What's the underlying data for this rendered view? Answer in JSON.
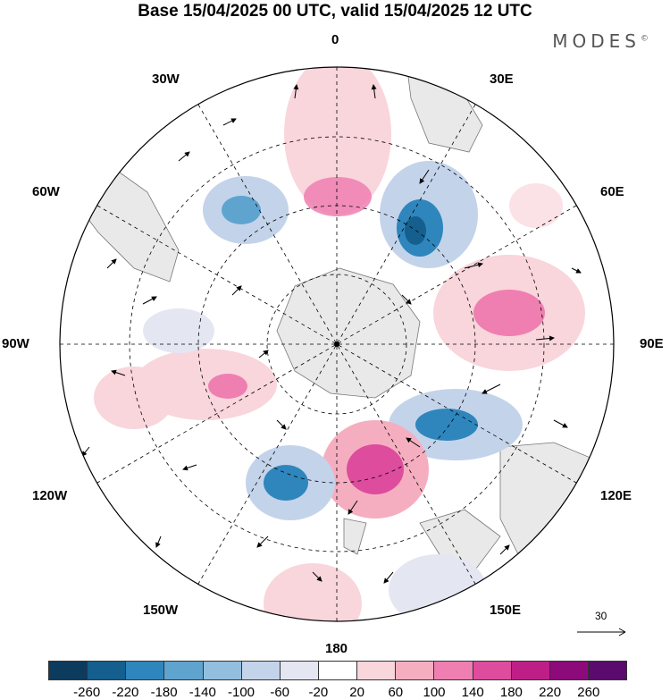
{
  "header": {
    "title": "Base 15/04/2025 00 UTC, valid 15/04/2025 12 UTC"
  },
  "logo": {
    "text": "MODES",
    "mark": "©"
  },
  "map": {
    "projection": "south-polar-stereographic",
    "longitude_labels": {
      "top": "0",
      "top_right": "30E",
      "right_upper": "60E",
      "right": "90E",
      "right_lower": "120E",
      "bottom_right": "150E",
      "bottom": "180",
      "bottom_left": "150W",
      "left_lower": "120W",
      "left": "90W",
      "left_upper": "60W",
      "top_left": "30W"
    },
    "reference_vector": {
      "value": "30"
    },
    "anomaly_centers": [
      {
        "sign": "positive",
        "level": 100,
        "location": "near 0 longitude"
      },
      {
        "sign": "negative",
        "level": -180,
        "location": "40E-60E"
      },
      {
        "sign": "positive",
        "level": 140,
        "location": "80E-90E"
      },
      {
        "sign": "negative",
        "level": -140,
        "location": "100E-110E"
      },
      {
        "sign": "positive",
        "level": 180,
        "location": "160E-180"
      },
      {
        "sign": "negative",
        "level": -180,
        "location": "140W"
      },
      {
        "sign": "positive",
        "level": 100,
        "location": "100W"
      },
      {
        "sign": "negative",
        "level": -140,
        "location": "40W"
      }
    ]
  },
  "colorbar": {
    "colors": [
      "#0d3b5e",
      "#145f8e",
      "#2e86bd",
      "#5fa4cf",
      "#93bfdf",
      "#c3d3ea",
      "#e4e6f2",
      "#ffffff",
      "#f9d5dc",
      "#f5aec0",
      "#ef7fb0",
      "#dd4c9d",
      "#be1f86",
      "#8c0a79",
      "#5b0a6e"
    ],
    "tick_labels": [
      "-260",
      "-220",
      "-180",
      "-140",
      "-100",
      "-60",
      "-20",
      "20",
      "60",
      "100",
      "140",
      "180",
      "220",
      "260"
    ]
  }
}
